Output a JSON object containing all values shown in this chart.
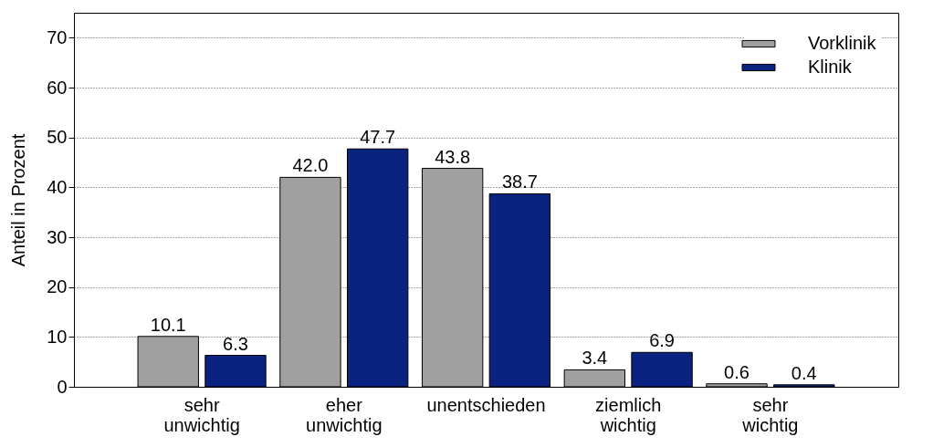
{
  "chart_data": {
    "type": "bar",
    "ylabel": "Anteil in Prozent",
    "categories": [
      "sehr unwichtig",
      "eher unwichtig",
      "unentschieden",
      "ziemlich wichtig",
      "sehr wichtig"
    ],
    "series": [
      {
        "name": "Vorklinik",
        "color": "#a0a0a0",
        "values": [
          10.1,
          42.0,
          43.8,
          3.4,
          0.6
        ],
        "value_labels": [
          "10.1",
          "42.0",
          "43.8",
          "3.4",
          "0.6"
        ]
      },
      {
        "name": "Klinik",
        "color": "#0a2380",
        "values": [
          6.3,
          47.7,
          38.7,
          6.9,
          0.4
        ],
        "value_labels": [
          "6.3",
          "47.7",
          "38.7",
          "6.9",
          "0.4"
        ]
      }
    ],
    "ylim": [
      0,
      75
    ],
    "yticks": [
      0,
      10,
      20,
      30,
      40,
      50,
      60,
      70
    ],
    "grid": "y",
    "legend": "top right"
  }
}
